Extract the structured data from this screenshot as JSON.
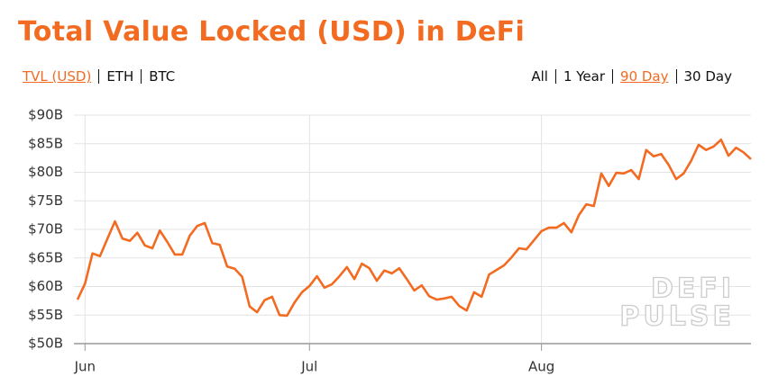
{
  "chart_data": {
    "type": "line",
    "title": "Total Value Locked (USD) in DeFi",
    "unit_options": [
      "TVL (USD)",
      "ETH",
      "BTC"
    ],
    "active_unit": 0,
    "range_options": [
      "All",
      "1 Year",
      "90 Day",
      "30 Day"
    ],
    "active_range": 2,
    "watermark": [
      "DEFI",
      "PULSE"
    ],
    "categories": [
      null,
      "Jun",
      null,
      null,
      null,
      null,
      null,
      null,
      null,
      null,
      null,
      null,
      null,
      null,
      null,
      null,
      null,
      null,
      null,
      null,
      null,
      null,
      null,
      null,
      null,
      null,
      null,
      null,
      null,
      null,
      null,
      "Jul",
      null,
      null,
      null,
      null,
      null,
      null,
      null,
      null,
      null,
      null,
      null,
      null,
      null,
      null,
      null,
      null,
      null,
      null,
      null,
      null,
      null,
      null,
      null,
      null,
      null,
      null,
      null,
      null,
      null,
      null,
      "Aug",
      null,
      null,
      null,
      null,
      null,
      null,
      null,
      null,
      null,
      null,
      null,
      null,
      null,
      null,
      null,
      null,
      null,
      null,
      null,
      null,
      null,
      null,
      null,
      null,
      null,
      null,
      null,
      null
    ],
    "series": [
      {
        "name": "TVL (USD)",
        "color": "#f26b21",
        "values": [
          57.7,
          60.5,
          65.8,
          65.3,
          68.4,
          71.4,
          68.4,
          68.0,
          69.4,
          67.2,
          66.7,
          69.8,
          67.8,
          65.6,
          65.6,
          68.9,
          70.6,
          71.1,
          67.6,
          67.3,
          63.5,
          63.1,
          61.7,
          56.5,
          55.5,
          57.6,
          58.2,
          55.0,
          54.9,
          57.2,
          59.0,
          60.1,
          61.8,
          59.8,
          60.4,
          61.8,
          63.4,
          61.3,
          64.0,
          63.2,
          61.0,
          62.8,
          62.3,
          63.2,
          61.3,
          59.3,
          60.2,
          58.3,
          57.7,
          57.9,
          58.2,
          56.6,
          55.8,
          59.0,
          58.2,
          62.1,
          62.9,
          63.7,
          65.1,
          66.7,
          66.5,
          68.1,
          69.7,
          70.3,
          70.3,
          71.1,
          69.5,
          72.5,
          74.4,
          74.1,
          79.8,
          77.6,
          79.9,
          79.8,
          80.4,
          78.8,
          83.9,
          82.8,
          83.2,
          81.3,
          78.8,
          79.8,
          82.0,
          84.8,
          83.9,
          84.5,
          85.7,
          82.9,
          84.3,
          83.5,
          82.3
        ]
      }
    ],
    "ylim": [
      50,
      90
    ],
    "yticks": [
      {
        "value": 50,
        "label": "$50B"
      },
      {
        "value": 55,
        "label": "$55B"
      },
      {
        "value": 60,
        "label": "$60B"
      },
      {
        "value": 65,
        "label": "$65B"
      },
      {
        "value": 70,
        "label": "$70B"
      },
      {
        "value": 75,
        "label": "$75B"
      },
      {
        "value": 80,
        "label": "$80B"
      },
      {
        "value": 85,
        "label": "$85B"
      },
      {
        "value": 90,
        "label": "$90B"
      }
    ],
    "grid": true
  }
}
